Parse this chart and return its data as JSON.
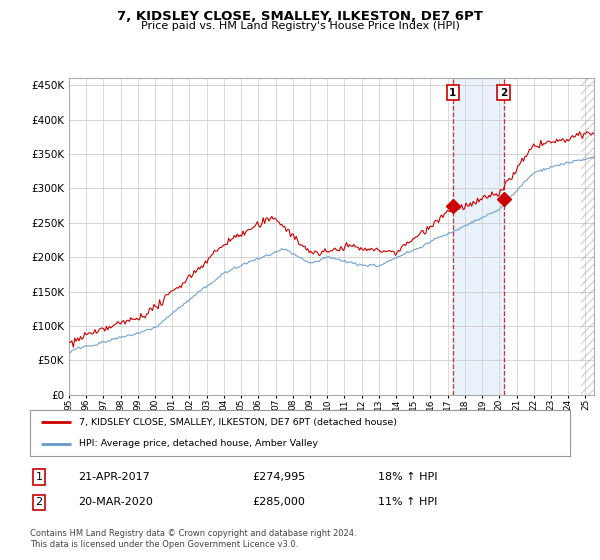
{
  "title": "7, KIDSLEY CLOSE, SMALLEY, ILKESTON, DE7 6PT",
  "subtitle": "Price paid vs. HM Land Registry's House Price Index (HPI)",
  "ytick_values": [
    0,
    50000,
    100000,
    150000,
    200000,
    250000,
    300000,
    350000,
    400000,
    450000
  ],
  "ylim": [
    0,
    460000
  ],
  "xlim_start": 1995.0,
  "xlim_end": 2025.5,
  "hpi_color": "#6699cc",
  "price_color": "#cc0000",
  "dashed_x1": 2017.3,
  "dashed_x2": 2020.25,
  "marker1_x": 2017.3,
  "marker1_y": 274995,
  "marker2_x": 2020.25,
  "marker2_y": 285000,
  "span_color": "#ddeeff",
  "legend_line1": "7, KIDSLEY CLOSE, SMALLEY, ILKESTON, DE7 6PT (detached house)",
  "legend_line2": "HPI: Average price, detached house, Amber Valley",
  "table_row1": [
    "1",
    "21-APR-2017",
    "£274,995",
    "18% ↑ HPI"
  ],
  "table_row2": [
    "2",
    "20-MAR-2020",
    "£285,000",
    "11% ↑ HPI"
  ],
  "footer": "Contains HM Land Registry data © Crown copyright and database right 2024.\nThis data is licensed under the Open Government Licence v3.0.",
  "background_color": "#ffffff",
  "grid_color": "#cccccc",
  "hatch_start": 2024.75
}
